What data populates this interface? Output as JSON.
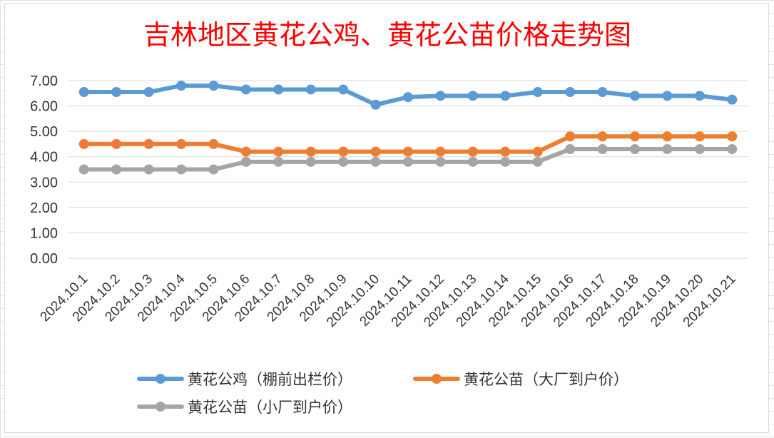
{
  "chart_data": {
    "type": "line",
    "title": "吉林地区黄花公鸡、黄花公苗价格走势图",
    "xlabel": "",
    "ylabel": "",
    "ylim": [
      0,
      7
    ],
    "yticks": [
      "0.00",
      "1.00",
      "2.00",
      "3.00",
      "4.00",
      "5.00",
      "6.00",
      "7.00"
    ],
    "grid": true,
    "legend_position": "bottom",
    "categories": [
      "2024.10.1",
      "2024.10.2",
      "2024.10.3",
      "2024.10.4",
      "2024.10.5",
      "2024.10.6",
      "2024.10.7",
      "2024.10.8",
      "2024.10.9",
      "2024.10.10",
      "2024.10.11",
      "2024.10.12",
      "2024.10.13",
      "2024.10.14",
      "2024.10.15",
      "2024.10.16",
      "2024.10.17",
      "2024.10.18",
      "2024.10.19",
      "2024.10.20",
      "2024.10.21"
    ],
    "series": [
      {
        "name": "黄花公鸡（棚前出栏价）",
        "color": "#5b9bd5",
        "values": [
          6.55,
          6.55,
          6.55,
          6.8,
          6.8,
          6.65,
          6.65,
          6.65,
          6.65,
          6.05,
          6.35,
          6.4,
          6.4,
          6.4,
          6.55,
          6.55,
          6.55,
          6.4,
          6.4,
          6.4,
          6.25
        ]
      },
      {
        "name": "黄花公苗（大厂到户价）",
        "color": "#ed7d31",
        "values": [
          4.5,
          4.5,
          4.5,
          4.5,
          4.5,
          4.2,
          4.2,
          4.2,
          4.2,
          4.2,
          4.2,
          4.2,
          4.2,
          4.2,
          4.2,
          4.8,
          4.8,
          4.8,
          4.8,
          4.8,
          4.8
        ]
      },
      {
        "name": "黄花公苗（小厂到户价）",
        "color": "#a5a5a5",
        "values": [
          3.5,
          3.5,
          3.5,
          3.5,
          3.5,
          3.8,
          3.8,
          3.8,
          3.8,
          3.8,
          3.8,
          3.8,
          3.8,
          3.8,
          3.8,
          4.3,
          4.3,
          4.3,
          4.3,
          4.3,
          4.3
        ]
      }
    ]
  }
}
